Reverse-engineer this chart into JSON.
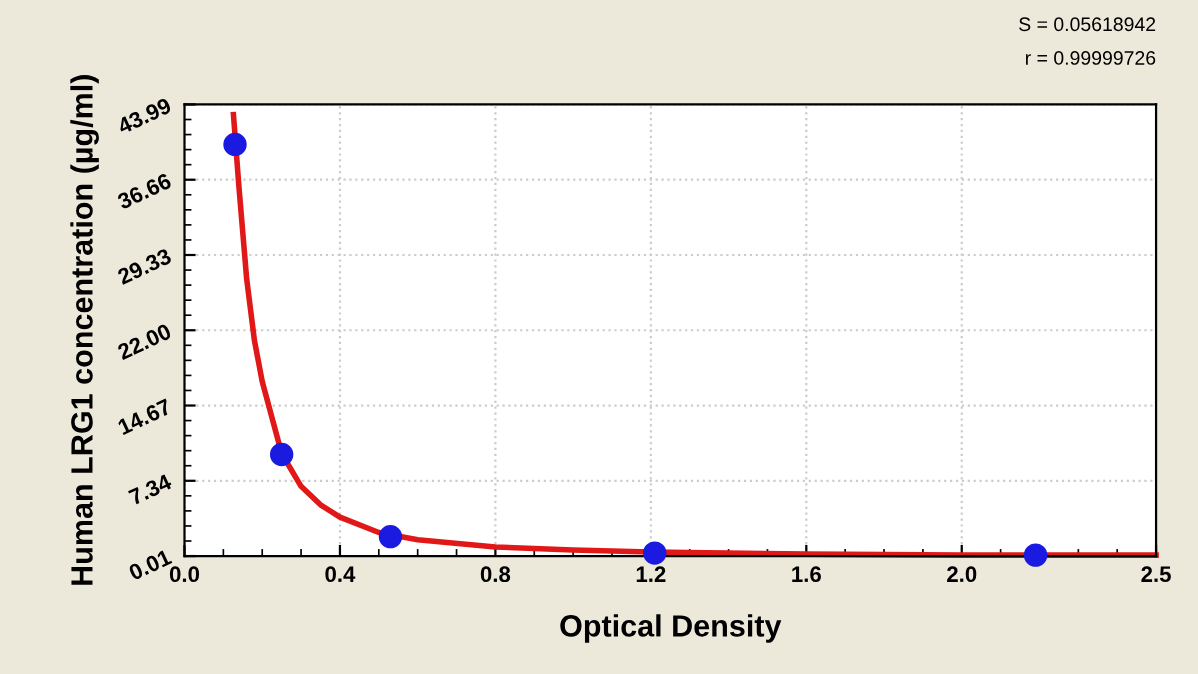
{
  "chart_data": {
    "type": "scatter",
    "xlabel": "Optical Density",
    "ylabel": "Human LRG1 concentration (µg/ml)",
    "annotations": [
      "S = 0.05618942",
      "r = 0.99999726"
    ],
    "series": [
      {
        "type": "line",
        "color": "#e01818",
        "marker": "none",
        "x": [
          0.126,
          0.14,
          0.16,
          0.18,
          0.2,
          0.25,
          0.3,
          0.35,
          0.4,
          0.5,
          0.6,
          0.8,
          1.0,
          1.2,
          1.6,
          2.0,
          2.5
        ],
        "values": [
          43,
          36,
          27,
          21,
          17,
          10,
          6.8,
          5,
          3.8,
          2.3,
          1.6,
          0.9,
          0.6,
          0.4,
          0.2,
          0.1,
          0.1
        ]
      },
      {
        "color": "#1a1ae0",
        "marker": "circle",
        "x": [
          0.13,
          0.25,
          0.53,
          1.21,
          2.19
        ],
        "values": [
          40.1,
          9.9,
          1.9,
          0.3,
          0.1
        ]
      }
    ],
    "xlim": [
      0,
      2.5
    ],
    "xticks": [
      {
        "value": 0,
        "label": "0.0"
      },
      0.4,
      0.8,
      1.2,
      1.6,
      {
        "value": 2.0,
        "label": "2.0"
      },
      2.5
    ],
    "ylim": [
      0.01,
      43.99
    ],
    "yticks": [
      0.01,
      7.34,
      14.67,
      {
        "value": 22.0,
        "label": "22.00"
      },
      29.33,
      36.66,
      43.99
    ],
    "grid": true,
    "legend": false
  }
}
